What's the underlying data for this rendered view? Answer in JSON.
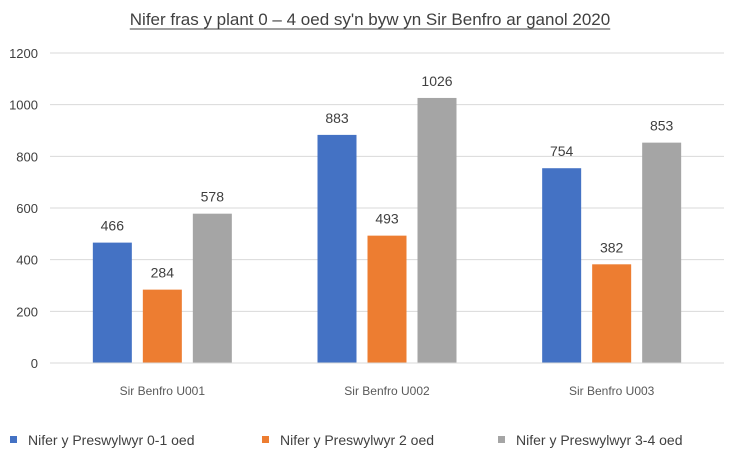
{
  "chart_data": {
    "type": "bar",
    "title": "Nifer fras y plant 0 – 4 oed sy'n byw yn Sir Benfro ar ganol 2020",
    "xlabel": "",
    "ylabel": "",
    "categories": [
      "Sir Benfro U001",
      "Sir Benfro U002",
      "Sir Benfro U003"
    ],
    "series": [
      {
        "name": "Nifer y Preswylwyr 0-1 oed",
        "values": [
          466,
          883,
          754
        ],
        "color": "#4472C4"
      },
      {
        "name": "Nifer y Preswylwyr 2 oed",
        "values": [
          284,
          493,
          382
        ],
        "color": "#ED7D31"
      },
      {
        "name": "Nifer y Preswylwyr 3-4 oed",
        "values": [
          578,
          1026,
          853
        ],
        "color": "#A5A5A5"
      }
    ],
    "ylim": [
      0,
      1200
    ],
    "yticks": [
      0,
      200,
      400,
      600,
      800,
      1000,
      1200
    ],
    "grid": true,
    "legend_position": "bottom",
    "data_labels": true
  }
}
